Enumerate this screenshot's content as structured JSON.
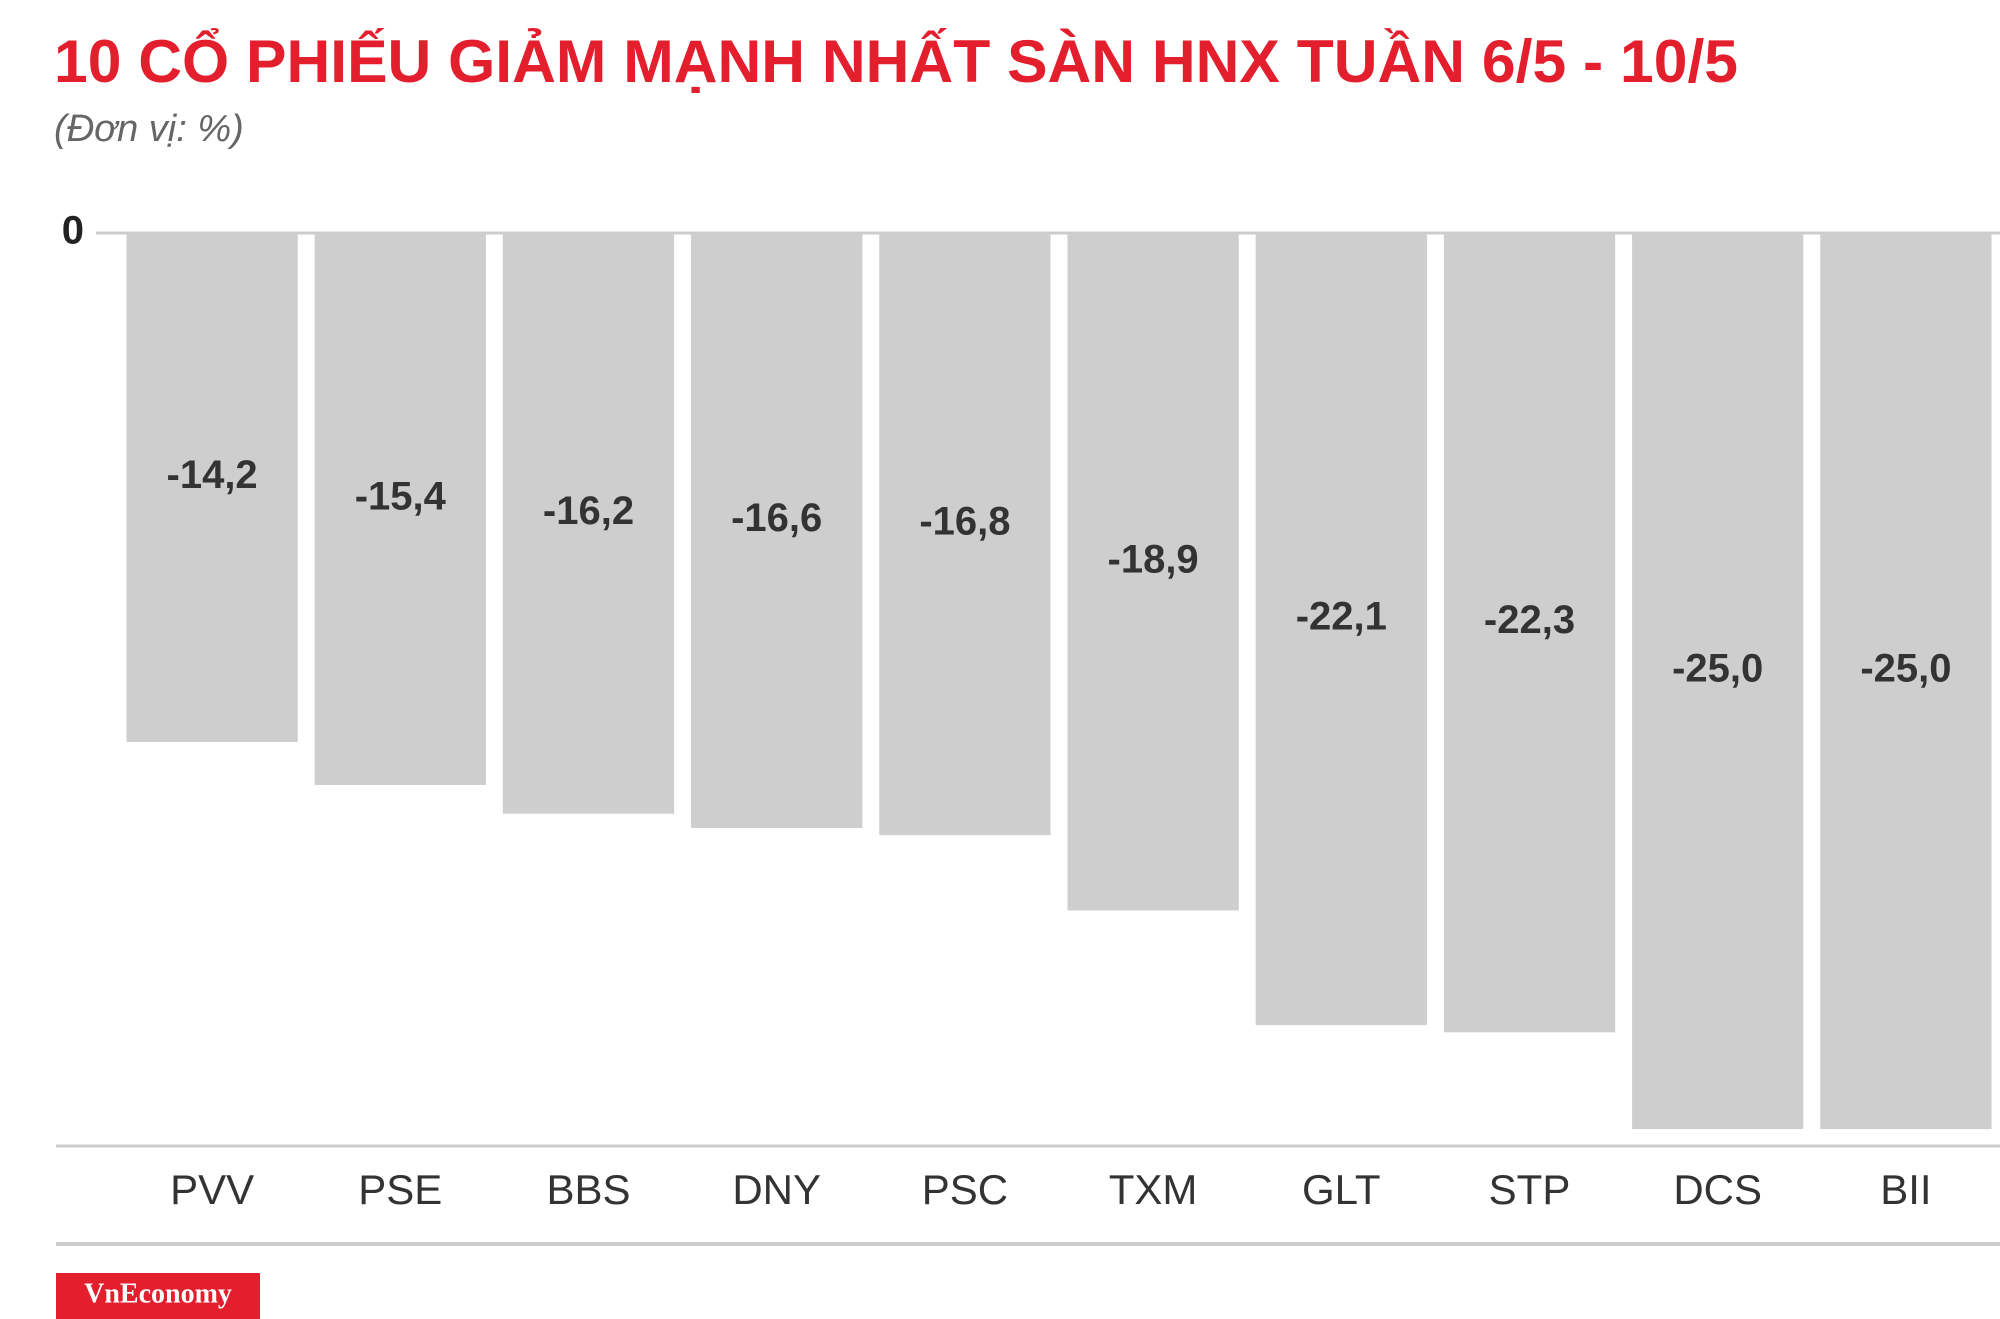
{
  "chart_data": {
    "type": "bar",
    "title": "10 CỔ PHIẾU GIẢM MẠNH NHẤT SÀN HNX TUẦN 6/5 - 10/5",
    "subtitle": "(Đơn vị: %)",
    "categories": [
      "PVV",
      "PSE",
      "BBS",
      "DNY",
      "PSC",
      "TXM",
      "GLT",
      "STP",
      "DCS",
      "BII"
    ],
    "values": [
      -14.2,
      -15.4,
      -16.2,
      -16.6,
      -16.8,
      -18.9,
      -22.1,
      -22.3,
      -25.0,
      -25.0
    ],
    "value_labels": [
      "-14,2",
      "-15,4",
      "-16,2",
      "-16,6",
      "-16,8",
      "-18,9",
      "-22,1",
      "-22,3",
      "-25,0",
      "-25,0"
    ],
    "color": "#cfcecf",
    "ylim": [
      -25.5,
      0
    ],
    "yticks": [
      0
    ],
    "grid": false
  },
  "logo": "VnEconomy"
}
